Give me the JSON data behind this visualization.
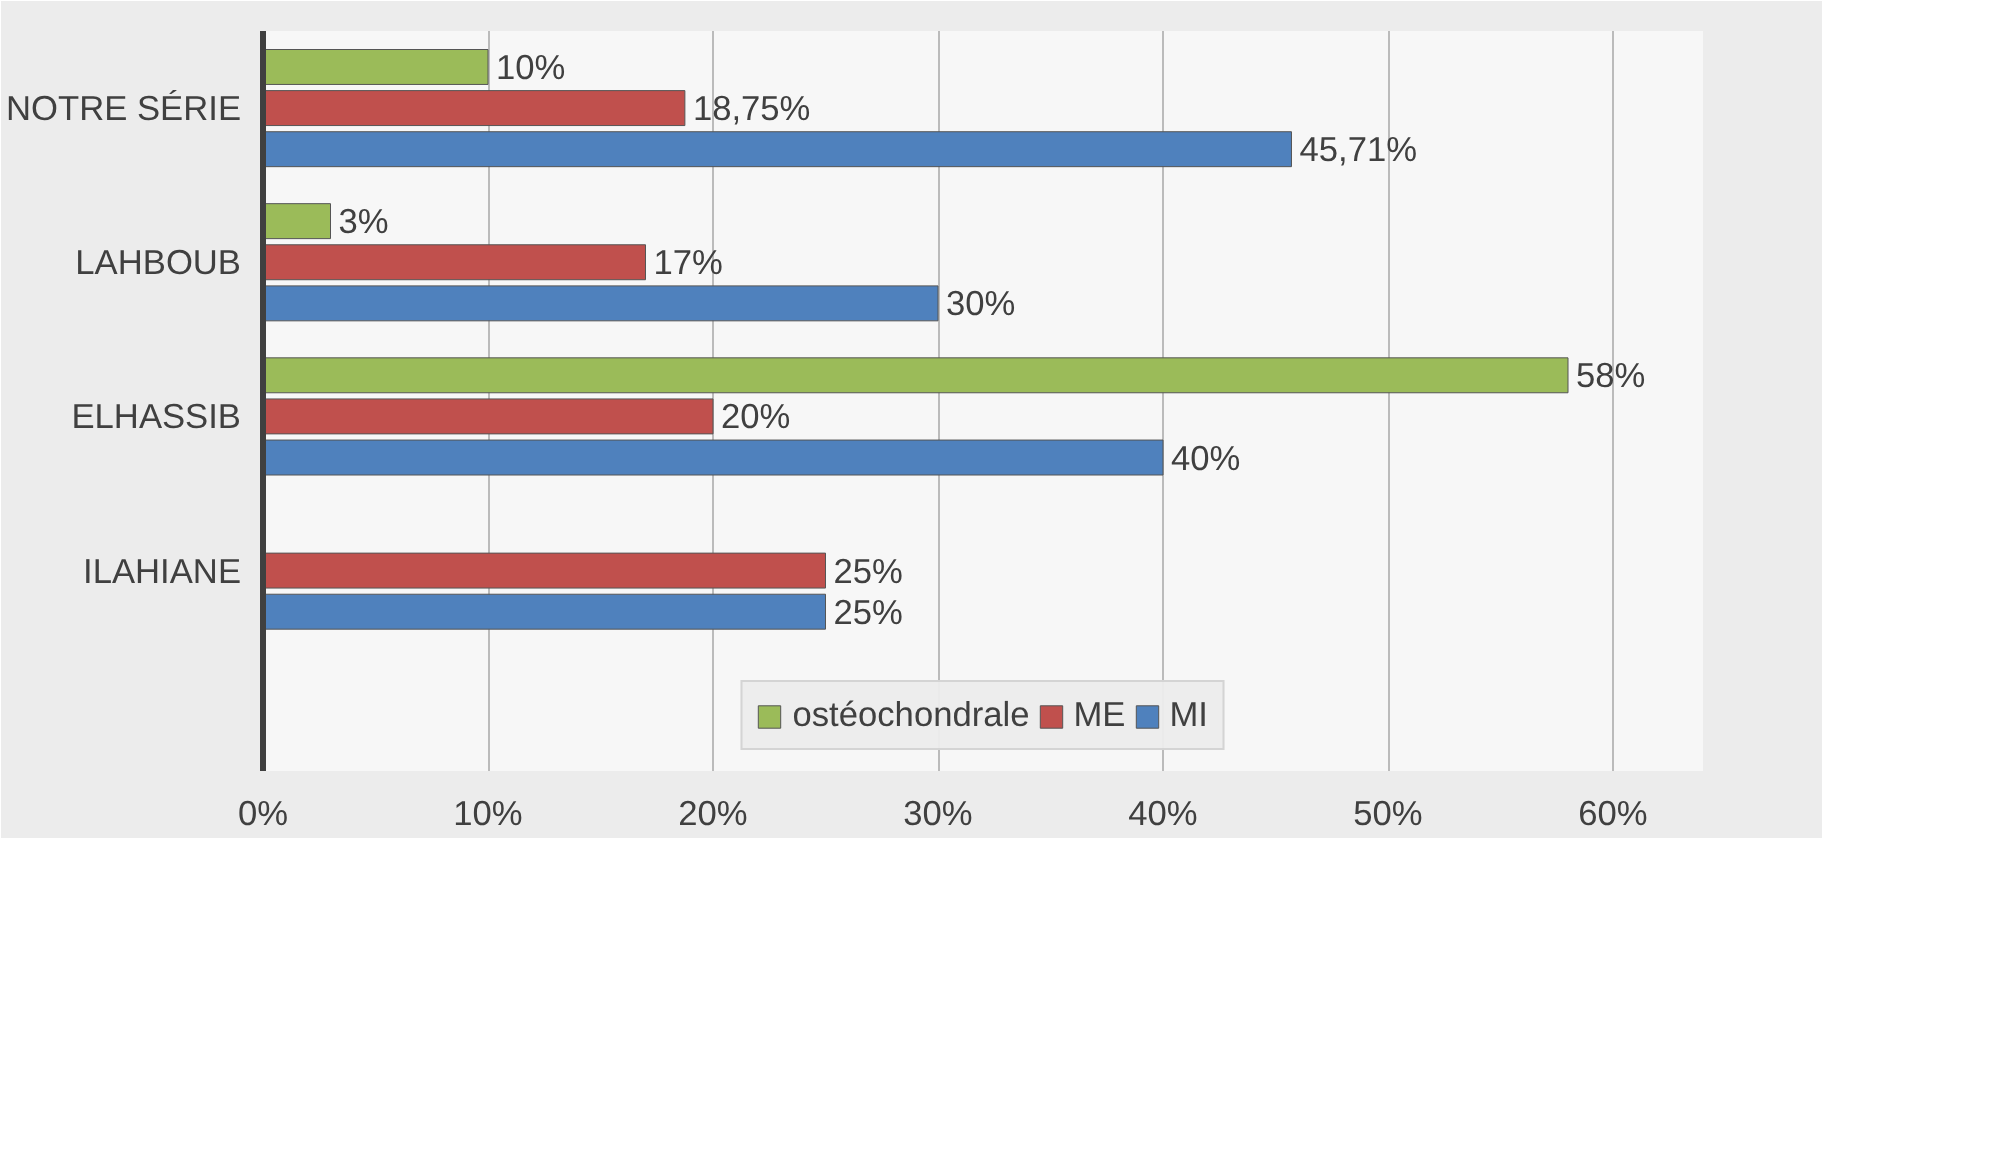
{
  "chart_data": {
    "type": "bar",
    "orientation": "horizontal",
    "categories": [
      "NOTRE SÉRIE",
      "LAHBOUB",
      "ELHASSIB",
      "ILAHIANE"
    ],
    "series": [
      {
        "name": "ostéochondrale",
        "color": "#9bbb59",
        "values": [
          10,
          3,
          58,
          null
        ],
        "value_labels": [
          "10%",
          "3%",
          "58%",
          null
        ]
      },
      {
        "name": "ME",
        "color": "#c0504d",
        "values": [
          18.75,
          17,
          20,
          25
        ],
        "value_labels": [
          "18,75%",
          "17%",
          "20%",
          "25%"
        ]
      },
      {
        "name": "MI",
        "color": "#4f81bd",
        "values": [
          45.71,
          30,
          40,
          25
        ],
        "value_labels": [
          "45,71%",
          "30%",
          "40%",
          "25%"
        ]
      }
    ],
    "xlim": [
      0,
      64
    ],
    "xticks": [
      {
        "value": 0,
        "label": "0%"
      },
      {
        "value": 10,
        "label": "10%"
      },
      {
        "value": 20,
        "label": "20%"
      },
      {
        "value": 30,
        "label": "30%"
      },
      {
        "value": 40,
        "label": "40%"
      },
      {
        "value": 50,
        "label": "50%"
      },
      {
        "value": 60,
        "label": "60%"
      }
    ],
    "grid": "x",
    "legend": "bottom"
  }
}
